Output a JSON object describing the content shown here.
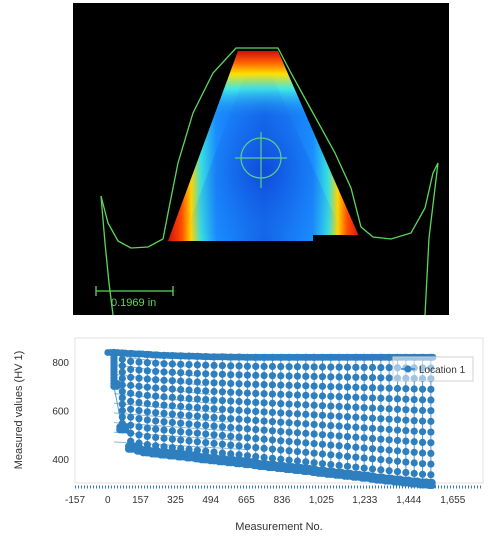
{
  "scan_view": {
    "scale_bar_label": "0.1969 in",
    "outline_color": "#5ed65e",
    "crosshair_color": "#6de27a"
  },
  "chart_data": {
    "type": "scatter",
    "title": "",
    "xlabel": "Measurement No.",
    "ylabel": "Measured values (HV 1)",
    "xlim": [
      -157,
      1800
    ],
    "ylim": [
      300,
      900
    ],
    "xticks": [
      "-157",
      "0",
      "157",
      "325",
      "494",
      "665",
      "836",
      "1,025",
      "1,233",
      "1,444",
      "1,655"
    ],
    "xtick_values": [
      -157,
      0,
      157,
      325,
      494,
      665,
      836,
      1025,
      1233,
      1444,
      1655
    ],
    "yticks": [
      "400",
      "600",
      "800"
    ],
    "ytick_values": [
      400,
      600,
      800
    ],
    "grid": false,
    "legend_placement": "top-right",
    "series": [
      {
        "name": "Location 1",
        "color": "#2e7fbf",
        "description_of_columns": "each measurement sweep spans from the upper envelope down to the lower envelope",
        "column_x": [
          30,
          70,
          110,
          150,
          190,
          230,
          270,
          310,
          350,
          390,
          430,
          470,
          510,
          550,
          590,
          630,
          670,
          710,
          750,
          790,
          830,
          870,
          910,
          950,
          990,
          1030,
          1070,
          1110,
          1150,
          1190,
          1230,
          1270,
          1310,
          1350,
          1390,
          1430,
          1470,
          1510,
          1550
        ],
        "upper_y": [
          840,
          838,
          836,
          834,
          832,
          830,
          828,
          827,
          826,
          825,
          824,
          823,
          822,
          822,
          821,
          821,
          820,
          820,
          820,
          820,
          820,
          820,
          820,
          820,
          820,
          820,
          820,
          820,
          820,
          820,
          820,
          820,
          820,
          820,
          820,
          820,
          820,
          820,
          820
        ],
        "lower_y": [
          700,
          520,
          440,
          432,
          425,
          420,
          416,
          412,
          408,
          404,
          400,
          396,
          392,
          388,
          384,
          380,
          376,
          372,
          368,
          364,
          360,
          356,
          352,
          348,
          344,
          340,
          336,
          332,
          328,
          324,
          320,
          316,
          312,
          308,
          304,
          300,
          296,
          292,
          290
        ]
      }
    ]
  }
}
